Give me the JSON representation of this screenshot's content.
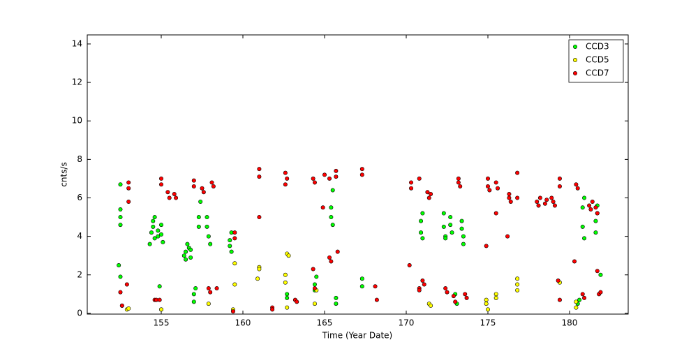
{
  "chart_data": {
    "type": "scatter",
    "xlabel": "Time (Year Date)",
    "ylabel": "cnts/s",
    "xlim": [
      150.47,
      183.59
    ],
    "ylim": [
      -0.04,
      14.47
    ],
    "xticks": [
      155,
      160,
      165,
      170,
      175,
      180
    ],
    "yticks": [
      0,
      2,
      4,
      6,
      8,
      10,
      12,
      14
    ],
    "legend": "upper right",
    "series": [
      {
        "name": "CCD3",
        "color": "#00ff00",
        "x": [
          152.5,
          152.5,
          152.5,
          152.5,
          152.4,
          152.5,
          152.6,
          154.5,
          154.4,
          154.6,
          154.5,
          154.3,
          154.6,
          154.8,
          154.8,
          155.0,
          155.0,
          155.1,
          154.9,
          155.0,
          156.5,
          156.4,
          156.6,
          156.5,
          156.7,
          156.8,
          156.8,
          157.0,
          157.0,
          157.1,
          157.3,
          157.3,
          157.4,
          157.8,
          157.9,
          157.8,
          158.0,
          159.2,
          159.3,
          159.2,
          159.3,
          162.7,
          162.7,
          164.4,
          164.4,
          164.5,
          165.4,
          165.4,
          165.5,
          165.5,
          165.7,
          165.7,
          167.3,
          167.3,
          170.9,
          170.9,
          171.0,
          171.0,
          172.3,
          172.4,
          172.3,
          172.4,
          172.7,
          172.8,
          172.7,
          173.4,
          173.5,
          173.4,
          173.5,
          180.5,
          180.6,
          180.8,
          180.9,
          180.8,
          180.9,
          181.6,
          181.7,
          181.6,
          181.7,
          181.9,
          173.0,
          173.1
        ],
        "values": [
          5.0,
          4.6,
          5.4,
          6.7,
          2.5,
          1.9,
          0.4,
          4.5,
          4.2,
          3.9,
          4.8,
          3.6,
          5.0,
          4.0,
          4.3,
          4.1,
          4.6,
          3.7,
          1.4,
          0.2,
          3.2,
          3.0,
          3.6,
          2.8,
          3.4,
          2.9,
          3.3,
          1.0,
          0.6,
          1.3,
          5.0,
          4.5,
          5.8,
          4.5,
          4.0,
          5.0,
          3.6,
          3.5,
          3.2,
          3.8,
          4.2,
          1.0,
          0.8,
          1.5,
          1.2,
          1.9,
          5.0,
          5.5,
          4.6,
          6.4,
          0.5,
          0.8,
          1.4,
          1.8,
          4.2,
          4.8,
          3.9,
          5.2,
          4.5,
          4.0,
          5.2,
          3.9,
          4.6,
          4.2,
          5.0,
          4.4,
          4.0,
          4.8,
          3.6,
          0.5,
          0.7,
          4.5,
          3.9,
          5.5,
          6.0,
          4.8,
          5.2,
          4.2,
          5.6,
          2.0,
          1.0,
          0.5
        ]
      },
      {
        "name": "CCD5",
        "color": "#ffff00",
        "x": [
          152.9,
          153.0,
          155.0,
          157.9,
          159.5,
          159.5,
          159.4,
          161.0,
          161.0,
          160.9,
          162.7,
          162.6,
          162.6,
          162.7,
          162.8,
          164.5,
          164.4,
          171.4,
          171.5,
          174.9,
          174.9,
          175.0,
          175.5,
          175.5,
          176.8,
          176.8,
          176.8,
          179.4,
          180.4,
          180.4
        ],
        "values": [
          0.2,
          0.25,
          0.2,
          0.5,
          2.6,
          1.5,
          0.2,
          2.4,
          2.3,
          1.8,
          3.1,
          2.0,
          1.6,
          0.3,
          3.0,
          1.2,
          0.5,
          0.5,
          0.4,
          0.7,
          0.5,
          0.2,
          1.0,
          0.8,
          1.8,
          1.5,
          1.2,
          1.6,
          0.6,
          0.3
        ]
      },
      {
        "name": "CCD7",
        "color": "#ff0000",
        "x": [
          152.5,
          152.6,
          153.0,
          153.0,
          153.0,
          152.9,
          154.6,
          154.7,
          154.9,
          155.0,
          155.0,
          155.4,
          155.5,
          155.8,
          155.9,
          157.0,
          157.0,
          157.5,
          157.6,
          157.9,
          158.0,
          158.1,
          158.2,
          158.4,
          159.5,
          159.5,
          159.4,
          161.0,
          161.0,
          161.0,
          161.8,
          161.8,
          162.6,
          162.7,
          162.6,
          163.2,
          163.3,
          164.3,
          164.4,
          164.3,
          164.4,
          165.0,
          164.9,
          165.3,
          165.4,
          165.3,
          165.7,
          165.7,
          165.8,
          167.3,
          167.3,
          168.1,
          168.2,
          170.3,
          170.3,
          170.2,
          170.8,
          170.8,
          170.8,
          171.0,
          171.1,
          171.3,
          171.4,
          171.5,
          172.4,
          172.5,
          172.9,
          173.0,
          173.2,
          173.3,
          173.2,
          173.6,
          173.7,
          175.0,
          175.0,
          175.1,
          174.9,
          175.5,
          175.6,
          175.5,
          176.3,
          176.4,
          176.3,
          176.2,
          176.8,
          176.8,
          178.0,
          178.1,
          178.2,
          178.5,
          178.6,
          179.0,
          179.1,
          178.9,
          179.4,
          179.4,
          179.3,
          179.4,
          180.4,
          180.5,
          180.3,
          180.8,
          180.9,
          181.2,
          181.3,
          181.4,
          181.6,
          181.7,
          181.8,
          181.9,
          181.7
        ],
        "values": [
          1.1,
          0.4,
          6.8,
          6.5,
          5.8,
          1.5,
          0.7,
          0.7,
          0.7,
          7.0,
          6.7,
          6.3,
          6.0,
          6.2,
          6.0,
          6.9,
          6.6,
          6.5,
          6.3,
          1.3,
          1.1,
          6.8,
          6.6,
          1.3,
          4.2,
          3.9,
          0.1,
          7.5,
          7.1,
          5.0,
          0.3,
          0.2,
          7.3,
          7.0,
          6.7,
          0.7,
          0.6,
          7.0,
          6.8,
          2.3,
          1.3,
          7.2,
          5.5,
          7.0,
          2.7,
          2.9,
          7.4,
          7.1,
          3.2,
          7.5,
          7.2,
          1.4,
          0.7,
          6.8,
          6.5,
          2.5,
          1.3,
          1.2,
          7.0,
          1.7,
          1.5,
          6.3,
          6.0,
          6.2,
          1.3,
          1.1,
          0.9,
          0.6,
          6.8,
          6.6,
          7.0,
          1.0,
          0.8,
          7.0,
          6.6,
          6.4,
          3.5,
          6.8,
          6.5,
          5.2,
          6.0,
          5.8,
          6.2,
          4.0,
          6.0,
          7.3,
          5.8,
          5.6,
          6.0,
          5.7,
          5.9,
          5.8,
          5.6,
          6.0,
          7.0,
          6.6,
          1.7,
          0.7,
          6.7,
          6.5,
          2.7,
          1.0,
          0.8,
          5.6,
          5.4,
          5.8,
          5.5,
          5.2,
          1.0,
          1.1,
          2.2
        ]
      }
    ]
  }
}
